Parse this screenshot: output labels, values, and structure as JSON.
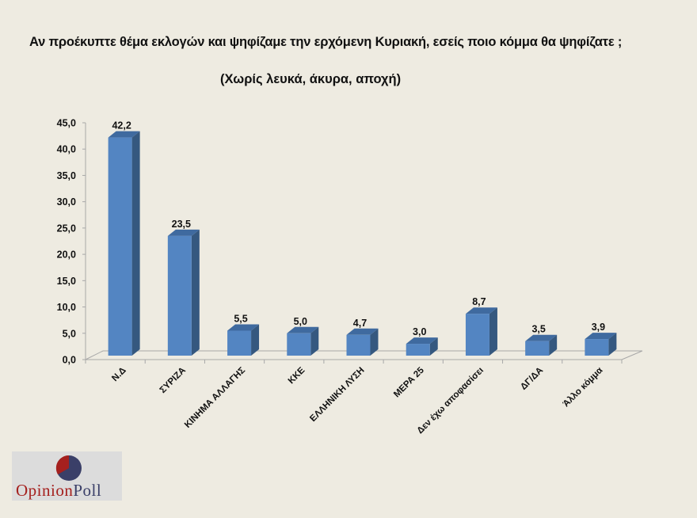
{
  "header": {
    "title": "Αν προέκυπτε θέμα εκλογών και ψηφίζαμε την ερχόμενη Κυριακή, εσείς ποιο κόμμα θα ψηφίζατε ;",
    "subtitle": "(Χωρίς λευκά, άκυρα, αποχή)"
  },
  "chart_data": {
    "type": "bar",
    "title": "Αν προέκυπτε θέμα εκλογών και ψηφίζαμε την ερχόμενη Κυριακή, εσείς ποιο κόμμα θα ψηφίζατε ;",
    "subtitle": "(Χωρίς λευκά, άκυρα, αποχή)",
    "categories": [
      "Ν.Δ",
      "ΣΥΡΙΖΑ",
      "ΚΙΝΗΜΑ ΑΛΛΑΓΗΣ",
      "ΚΚΕ",
      "ΕΛΛΗΝΙΚΗ ΛΥΣΗ",
      "ΜΕΡΑ 25",
      "Δεν έχω αποφασίσει",
      "ΔΓ/ΔΑ",
      "Άλλο κόμμα"
    ],
    "values": [
      42.2,
      23.5,
      5.5,
      5.0,
      4.7,
      3.0,
      8.7,
      3.5,
      3.9
    ],
    "value_labels": [
      "42,2",
      "23,5",
      "5,5",
      "5,0",
      "4,7",
      "3,0",
      "8,7",
      "3,5",
      "3,9"
    ],
    "xlabel": "",
    "ylabel": "",
    "ylim": [
      0,
      45
    ],
    "yticks": [
      "0,0",
      "5,0",
      "10,0",
      "15,0",
      "20,0",
      "25,0",
      "30,0",
      "35,0",
      "40,0",
      "45,0"
    ],
    "grid": false,
    "legend": null,
    "style": "3d-column",
    "colors": {
      "front": "#5385c2",
      "side": "#35587f",
      "top": "#3f6a9f"
    }
  },
  "logo": {
    "text_a": "Opinion",
    "text_b": "Poll",
    "pie_red": "#a5201e",
    "pie_blue": "#3a3f68"
  }
}
